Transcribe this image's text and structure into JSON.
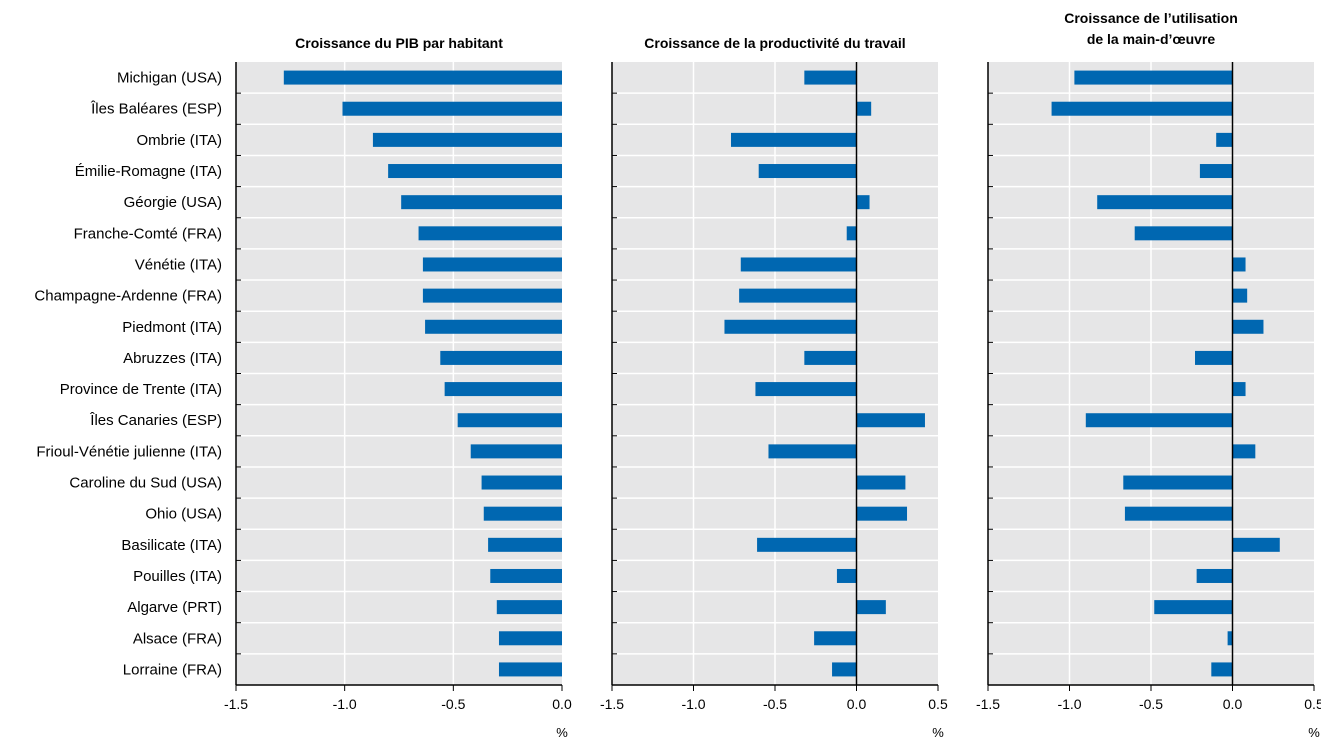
{
  "chart_data": {
    "type": "bar",
    "orientation": "horizontal",
    "categories": [
      "Michigan (USA)",
      "Îles Baléares (ESP)",
      "Ombrie (ITA)",
      "Émilie-Romagne (ITA)",
      "Géorgie (USA)",
      "Franche-Comté (FRA)",
      "Vénétie (ITA)",
      "Champagne-Ardenne (FRA)",
      "Piedmont (ITA)",
      "Abruzzes (ITA)",
      "Province de Trente (ITA)",
      "Îles Canaries (ESP)",
      "Frioul-Vénétie julienne (ITA)",
      "Caroline du Sud (USA)",
      "Ohio (USA)",
      "Basilicate  (ITA)",
      "Pouilles (ITA)",
      "Algarve (PRT)",
      "Alsace  (FRA)",
      "Lorraine (FRA)"
    ],
    "bar_color": "#0067b1",
    "plot_background": "#e6e6e7",
    "grid": true,
    "grid_color": "#ffffff",
    "panels": [
      {
        "title_lines": [
          "Croissance du PIB par habitant"
        ],
        "xlim": [
          -1.5,
          0.0
        ],
        "ticks": [
          -1.5,
          -1.0,
          -0.5,
          0.0
        ],
        "tick_labels": [
          "-1.5",
          "-1.0",
          "-0.5",
          "0.0"
        ],
        "unit": "%",
        "values": [
          -1.28,
          -1.01,
          -0.87,
          -0.8,
          -0.74,
          -0.66,
          -0.64,
          -0.64,
          -0.63,
          -0.56,
          -0.54,
          -0.48,
          -0.42,
          -0.37,
          -0.36,
          -0.34,
          -0.33,
          -0.3,
          -0.29,
          -0.29
        ]
      },
      {
        "title_lines": [
          "Croissance de la productivité du travail"
        ],
        "xlim": [
          -1.5,
          0.5
        ],
        "ticks": [
          -1.5,
          -1.0,
          -0.5,
          0.0,
          0.5
        ],
        "tick_labels": [
          "-1.5",
          "-1.0",
          "-0.5",
          "0.0",
          "0.5"
        ],
        "unit": "%",
        "values": [
          -0.32,
          0.09,
          -0.77,
          -0.6,
          0.08,
          -0.06,
          -0.71,
          -0.72,
          -0.81,
          -0.32,
          -0.62,
          0.42,
          -0.54,
          0.3,
          0.31,
          -0.61,
          -0.12,
          0.18,
          -0.26,
          -0.15
        ]
      },
      {
        "title_lines": [
          "Croissance de l’utilisation",
          "de la main-d’œuvre"
        ],
        "xlim": [
          -1.5,
          0.5
        ],
        "ticks": [
          -1.5,
          -1.0,
          -0.5,
          0.0,
          0.5
        ],
        "tick_labels": [
          "-1.5",
          "-1.0",
          "-0.5",
          "0.0",
          "0.5"
        ],
        "unit": "%",
        "values": [
          -0.97,
          -1.11,
          -0.1,
          -0.2,
          -0.83,
          -0.6,
          0.08,
          0.09,
          0.19,
          -0.23,
          0.08,
          -0.9,
          0.14,
          -0.67,
          -0.66,
          0.29,
          -0.22,
          -0.48,
          -0.03,
          -0.13
        ]
      }
    ]
  }
}
